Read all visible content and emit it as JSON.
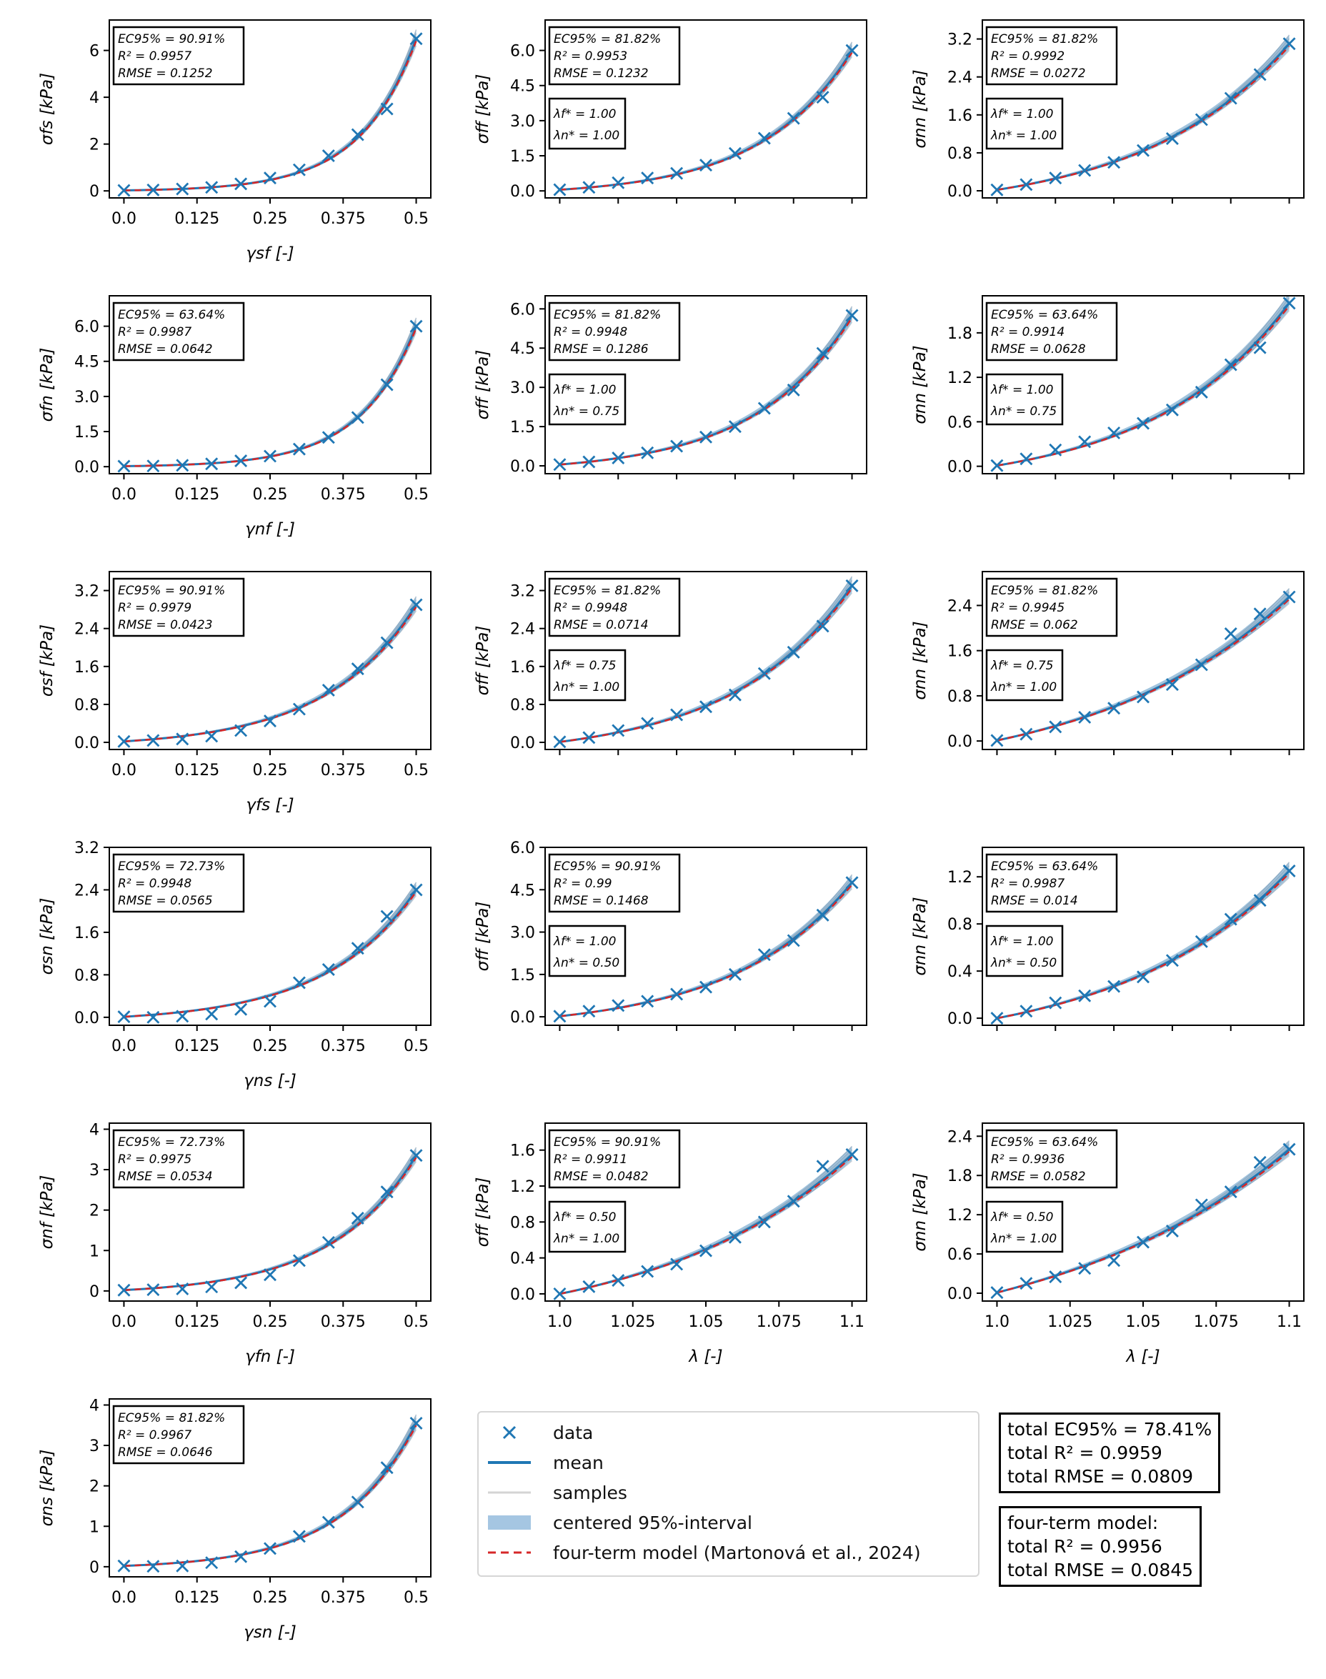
{
  "legend": {
    "data": "data",
    "mean": "mean",
    "samples": "samples",
    "interval": "centered 95%-interval",
    "model": "four-term model (Martonová et al., 2024)"
  },
  "totals": {
    "bayes": [
      "total EC95% = 78.41%",
      "total R² = 0.9959",
      "total RMSE = 0.0809"
    ],
    "model_title": "four-term model:",
    "model": [
      "total R² = 0.9956",
      "total RMSE = 0.0845"
    ]
  },
  "colors": {
    "data": "#1f77b4",
    "mean": "#1f77b4",
    "band": "#6fa4cc",
    "samples": "#cccccc",
    "model": "#d62728"
  },
  "chart_data": [
    {
      "type": "line",
      "row": 0,
      "col": 0,
      "xlabel": "γsf [-]",
      "ylabel": "σfs [kPa]",
      "xticks": [
        "0.0",
        "0.125",
        "0.25",
        "0.375",
        "0.5"
      ],
      "xlim": [
        -0.025,
        0.525
      ],
      "ylim": [
        -0.3,
        7.3
      ],
      "yticks": [
        "0",
        "2",
        "4",
        "6"
      ],
      "ytick_values": [
        0,
        2,
        4,
        6
      ],
      "stats": [
        "EC95% = 90.91%",
        "R² = 0.9957",
        "RMSE = 0.1252"
      ],
      "lambda": [],
      "x": [
        0,
        0.05,
        0.1,
        0.15,
        0.2,
        0.25,
        0.3,
        0.35,
        0.4,
        0.45,
        0.5
      ],
      "y": [
        0.02,
        0.04,
        0.08,
        0.15,
        0.3,
        0.55,
        0.9,
        1.5,
        2.4,
        3.5,
        6.5
      ]
    },
    {
      "type": "line",
      "row": 0,
      "col": 1,
      "xlabel": "",
      "ylabel": "σff [kPa]",
      "xticks": [
        "",
        "",
        "",
        "",
        "",
        ""
      ],
      "xlim": [
        0.995,
        1.105
      ],
      "ylim": [
        -0.3,
        7.3
      ],
      "yticks": [
        "0.0",
        "1.5",
        "3.0",
        "4.5",
        "6.0"
      ],
      "ytick_values": [
        0,
        1.5,
        3,
        4.5,
        6
      ],
      "stats": [
        "EC95% = 81.82%",
        "R² = 0.9953",
        "RMSE = 0.1232"
      ],
      "lambda": [
        "λf* = 1.00",
        "λn* = 1.00"
      ],
      "x": [
        1.0,
        1.01,
        1.02,
        1.03,
        1.04,
        1.05,
        1.06,
        1.07,
        1.08,
        1.09,
        1.1
      ],
      "y": [
        0.05,
        0.15,
        0.35,
        0.55,
        0.75,
        1.1,
        1.6,
        2.25,
        3.1,
        4.0,
        6.0
      ]
    },
    {
      "type": "line",
      "row": 0,
      "col": 2,
      "xlabel": "",
      "ylabel": "σnn [kPa]",
      "xticks": [
        "",
        "",
        "",
        "",
        "",
        ""
      ],
      "xlim": [
        0.995,
        1.105
      ],
      "ylim": [
        -0.15,
        3.6
      ],
      "yticks": [
        "0.0",
        "0.8",
        "1.6",
        "2.4",
        "3.2"
      ],
      "ytick_values": [
        0,
        0.8,
        1.6,
        2.4,
        3.2
      ],
      "stats": [
        "EC95% = 81.82%",
        "R² = 0.9992",
        "RMSE = 0.0272"
      ],
      "lambda": [
        "λf* = 1.00",
        "λn* = 1.00"
      ],
      "x": [
        1.0,
        1.01,
        1.02,
        1.03,
        1.04,
        1.05,
        1.06,
        1.07,
        1.08,
        1.09,
        1.1
      ],
      "y": [
        0.02,
        0.13,
        0.27,
        0.43,
        0.6,
        0.85,
        1.1,
        1.5,
        1.95,
        2.45,
        3.1
      ]
    },
    {
      "type": "line",
      "row": 1,
      "col": 0,
      "xlabel": "γnf [-]",
      "ylabel": "σfn [kPa]",
      "xticks": [
        "0.0",
        "0.125",
        "0.25",
        "0.375",
        "0.5"
      ],
      "xlim": [
        -0.025,
        0.525
      ],
      "ylim": [
        -0.3,
        7.3
      ],
      "yticks": [
        "0.0",
        "1.5",
        "3.0",
        "4.5",
        "6.0"
      ],
      "ytick_values": [
        0,
        1.5,
        3,
        4.5,
        6
      ],
      "stats": [
        "EC95% = 63.64%",
        "R² = 0.9987",
        "RMSE = 0.0642"
      ],
      "lambda": [],
      "x": [
        0,
        0.05,
        0.1,
        0.15,
        0.2,
        0.25,
        0.3,
        0.35,
        0.4,
        0.45,
        0.5
      ],
      "y": [
        0.02,
        0.03,
        0.06,
        0.12,
        0.25,
        0.45,
        0.75,
        1.25,
        2.1,
        3.5,
        6.0
      ]
    },
    {
      "type": "line",
      "row": 1,
      "col": 1,
      "xlabel": "",
      "ylabel": "σff [kPa]",
      "xticks": [
        "",
        "",
        "",
        "",
        "",
        ""
      ],
      "xlim": [
        0.995,
        1.105
      ],
      "ylim": [
        -0.3,
        6.5
      ],
      "yticks": [
        "0.0",
        "1.5",
        "3.0",
        "4.5",
        "6.0"
      ],
      "ytick_values": [
        0,
        1.5,
        3,
        4.5,
        6
      ],
      "stats": [
        "EC95% = 81.82%",
        "R² = 0.9948",
        "RMSE = 0.1286"
      ],
      "lambda": [
        "λf* = 1.00",
        "λn* = 0.75"
      ],
      "x": [
        1.0,
        1.01,
        1.02,
        1.03,
        1.04,
        1.05,
        1.06,
        1.07,
        1.08,
        1.09,
        1.1
      ],
      "y": [
        0.05,
        0.15,
        0.3,
        0.5,
        0.75,
        1.1,
        1.5,
        2.2,
        2.9,
        4.3,
        5.75
      ]
    },
    {
      "type": "line",
      "row": 1,
      "col": 2,
      "xlabel": "",
      "ylabel": "σnn [kPa]",
      "xticks": [
        "",
        "",
        "",
        "",
        "",
        ""
      ],
      "xlim": [
        0.995,
        1.105
      ],
      "ylim": [
        -0.1,
        2.3
      ],
      "yticks": [
        "0.0",
        "0.6",
        "1.2",
        "1.8"
      ],
      "ytick_values": [
        0,
        0.6,
        1.2,
        1.8
      ],
      "stats": [
        "EC95% = 63.64%",
        "R² = 0.9914",
        "RMSE = 0.0628"
      ],
      "lambda": [
        "λf* = 1.00",
        "λn* = 0.75"
      ],
      "x": [
        1.0,
        1.01,
        1.02,
        1.03,
        1.04,
        1.05,
        1.06,
        1.07,
        1.08,
        1.09,
        1.1
      ],
      "y": [
        0.01,
        0.1,
        0.22,
        0.33,
        0.45,
        0.58,
        0.76,
        1.0,
        1.37,
        1.6,
        2.2
      ]
    },
    {
      "type": "line",
      "row": 2,
      "col": 0,
      "xlabel": "γfs [-]",
      "ylabel": "σsf [kPa]",
      "xticks": [
        "0.0",
        "0.125",
        "0.25",
        "0.375",
        "0.5"
      ],
      "xlim": [
        -0.025,
        0.525
      ],
      "ylim": [
        -0.15,
        3.6
      ],
      "yticks": [
        "0.0",
        "0.8",
        "1.6",
        "2.4",
        "3.2"
      ],
      "ytick_values": [
        0,
        0.8,
        1.6,
        2.4,
        3.2
      ],
      "stats": [
        "EC95% = 90.91%",
        "R² = 0.9979",
        "RMSE = 0.0423"
      ],
      "lambda": [],
      "x": [
        0,
        0.05,
        0.1,
        0.15,
        0.2,
        0.25,
        0.3,
        0.35,
        0.4,
        0.45,
        0.5
      ],
      "y": [
        0.02,
        0.04,
        0.07,
        0.13,
        0.25,
        0.45,
        0.7,
        1.1,
        1.55,
        2.1,
        2.9
      ]
    },
    {
      "type": "line",
      "row": 2,
      "col": 1,
      "xlabel": "",
      "ylabel": "σff [kPa]",
      "xticks": [
        "",
        "",
        "",
        "",
        "",
        ""
      ],
      "xlim": [
        0.995,
        1.105
      ],
      "ylim": [
        -0.15,
        3.6
      ],
      "yticks": [
        "0.0",
        "0.8",
        "1.6",
        "2.4",
        "3.2"
      ],
      "ytick_values": [
        0,
        0.8,
        1.6,
        2.4,
        3.2
      ],
      "stats": [
        "EC95% = 81.82%",
        "R² = 0.9948",
        "RMSE = 0.0714"
      ],
      "lambda": [
        "λf* = 0.75",
        "λn* = 1.00"
      ],
      "x": [
        1.0,
        1.01,
        1.02,
        1.03,
        1.04,
        1.05,
        1.06,
        1.07,
        1.08,
        1.09,
        1.1
      ],
      "y": [
        0.01,
        0.1,
        0.25,
        0.4,
        0.58,
        0.75,
        1.0,
        1.45,
        1.9,
        2.45,
        3.3
      ]
    },
    {
      "type": "line",
      "row": 2,
      "col": 2,
      "xlabel": "",
      "ylabel": "σnn [kPa]",
      "xticks": [
        "",
        "",
        "",
        "",
        "",
        ""
      ],
      "xlim": [
        0.995,
        1.105
      ],
      "ylim": [
        -0.15,
        3.0
      ],
      "yticks": [
        "0.0",
        "0.8",
        "1.6",
        "2.4"
      ],
      "ytick_values": [
        0,
        0.8,
        1.6,
        2.4
      ],
      "stats": [
        "EC95% = 81.82%",
        "R² = 0.9945",
        "RMSE = 0.062"
      ],
      "lambda": [
        "λf* = 0.75",
        "λn* = 1.00"
      ],
      "x": [
        1.0,
        1.01,
        1.02,
        1.03,
        1.04,
        1.05,
        1.06,
        1.07,
        1.08,
        1.09,
        1.1
      ],
      "y": [
        0.01,
        0.12,
        0.25,
        0.42,
        0.58,
        0.78,
        1.0,
        1.35,
        1.9,
        2.25,
        2.55
      ]
    },
    {
      "type": "line",
      "row": 3,
      "col": 0,
      "xlabel": "γns [-]",
      "ylabel": "σsn [kPa]",
      "xticks": [
        "0.0",
        "0.125",
        "0.25",
        "0.375",
        "0.5"
      ],
      "xlim": [
        -0.025,
        0.525
      ],
      "ylim": [
        -0.15,
        3.2
      ],
      "yticks": [
        "0.0",
        "0.8",
        "1.6",
        "2.4",
        "3.2"
      ],
      "ytick_values": [
        0,
        0.8,
        1.6,
        2.4,
        3.2
      ],
      "stats": [
        "EC95% = 72.73%",
        "R² = 0.9948",
        "RMSE = 0.0565"
      ],
      "lambda": [],
      "x": [
        0,
        0.05,
        0.1,
        0.15,
        0.2,
        0.25,
        0.3,
        0.35,
        0.4,
        0.45,
        0.5
      ],
      "y": [
        0.01,
        0.0,
        0.02,
        0.06,
        0.15,
        0.3,
        0.65,
        0.9,
        1.3,
        1.9,
        2.4
      ]
    },
    {
      "type": "line",
      "row": 3,
      "col": 1,
      "xlabel": "",
      "ylabel": "σff [kPa]",
      "xticks": [
        "",
        "",
        "",
        "",
        "",
        ""
      ],
      "xlim": [
        0.995,
        1.105
      ],
      "ylim": [
        -0.3,
        6.0
      ],
      "yticks": [
        "0.0",
        "1.5",
        "3.0",
        "4.5",
        "6.0"
      ],
      "ytick_values": [
        0,
        1.5,
        3,
        4.5,
        6
      ],
      "stats": [
        "EC95% = 90.91%",
        "R² = 0.99",
        "RMSE = 0.1468"
      ],
      "lambda": [
        "λf* = 1.00",
        "λn* = 0.50"
      ],
      "x": [
        1.0,
        1.01,
        1.02,
        1.03,
        1.04,
        1.05,
        1.06,
        1.07,
        1.08,
        1.09,
        1.1
      ],
      "y": [
        0.02,
        0.2,
        0.4,
        0.55,
        0.8,
        1.05,
        1.5,
        2.2,
        2.7,
        3.6,
        4.75
      ]
    },
    {
      "type": "line",
      "row": 3,
      "col": 2,
      "xlabel": "",
      "ylabel": "σnn [kPa]",
      "xticks": [
        "",
        "",
        "",
        "",
        "",
        ""
      ],
      "xlim": [
        0.995,
        1.105
      ],
      "ylim": [
        -0.06,
        1.45
      ],
      "yticks": [
        "0.0",
        "0.4",
        "0.8",
        "1.2"
      ],
      "ytick_values": [
        0,
        0.4,
        0.8,
        1.2
      ],
      "stats": [
        "EC95% = 63.64%",
        "R² = 0.9987",
        "RMSE = 0.014"
      ],
      "lambda": [
        "λf* = 1.00",
        "λn* = 0.50"
      ],
      "x": [
        1.0,
        1.01,
        1.02,
        1.03,
        1.04,
        1.05,
        1.06,
        1.07,
        1.08,
        1.09,
        1.1
      ],
      "y": [
        0.0,
        0.06,
        0.13,
        0.19,
        0.27,
        0.35,
        0.49,
        0.65,
        0.84,
        1.0,
        1.25
      ]
    },
    {
      "type": "line",
      "row": 4,
      "col": 0,
      "xlabel": "γfn [-]",
      "ylabel": "σnf [kPa]",
      "xticks": [
        "0.0",
        "0.125",
        "0.25",
        "0.375",
        "0.5"
      ],
      "xlim": [
        -0.025,
        0.525
      ],
      "ylim": [
        -0.25,
        4.15
      ],
      "yticks": [
        "0",
        "1",
        "2",
        "3",
        "4"
      ],
      "ytick_values": [
        0,
        1,
        2,
        3,
        4
      ],
      "stats": [
        "EC95% = 72.73%",
        "R² = 0.9975",
        "RMSE = 0.0534"
      ],
      "lambda": [],
      "x": [
        0,
        0.05,
        0.1,
        0.15,
        0.2,
        0.25,
        0.3,
        0.35,
        0.4,
        0.45,
        0.5
      ],
      "y": [
        0.02,
        0.03,
        0.05,
        0.1,
        0.2,
        0.4,
        0.75,
        1.2,
        1.8,
        2.45,
        3.35
      ]
    },
    {
      "type": "line",
      "row": 4,
      "col": 1,
      "xlabel": "λ [-]",
      "ylabel": "σff [kPa]",
      "xticks": [
        "1.0",
        "1.025",
        "1.05",
        "1.075",
        "1.1"
      ],
      "xlim": [
        0.995,
        1.105
      ],
      "ylim": [
        -0.08,
        1.9
      ],
      "yticks": [
        "0.0",
        "0.4",
        "0.8",
        "1.2",
        "1.6"
      ],
      "ytick_values": [
        0,
        0.4,
        0.8,
        1.2,
        1.6
      ],
      "stats": [
        "EC95% = 90.91%",
        "R² = 0.9911",
        "RMSE = 0.0482"
      ],
      "lambda": [
        "λf* = 0.50",
        "λn* = 1.00"
      ],
      "x": [
        1.0,
        1.01,
        1.02,
        1.03,
        1.04,
        1.05,
        1.06,
        1.07,
        1.08,
        1.09,
        1.1
      ],
      "y": [
        0.0,
        0.08,
        0.15,
        0.25,
        0.33,
        0.48,
        0.63,
        0.8,
        1.03,
        1.42,
        1.55
      ]
    },
    {
      "type": "line",
      "row": 4,
      "col": 2,
      "xlabel": "λ [-]",
      "ylabel": "σnn [kPa]",
      "xticks": [
        "1.0",
        "1.025",
        "1.05",
        "1.075",
        "1.1"
      ],
      "xlim": [
        0.995,
        1.105
      ],
      "ylim": [
        -0.12,
        2.6
      ],
      "yticks": [
        "0.0",
        "0.6",
        "1.2",
        "1.8",
        "2.4"
      ],
      "ytick_values": [
        0,
        0.6,
        1.2,
        1.8,
        2.4
      ],
      "stats": [
        "EC95% = 63.64%",
        "R² = 0.9936",
        "RMSE = 0.0582"
      ],
      "lambda": [
        "λf* = 0.50",
        "λn* = 1.00"
      ],
      "x": [
        1.0,
        1.01,
        1.02,
        1.03,
        1.04,
        1.05,
        1.06,
        1.07,
        1.08,
        1.09,
        1.1
      ],
      "y": [
        0.01,
        0.15,
        0.25,
        0.38,
        0.5,
        0.78,
        0.95,
        1.35,
        1.55,
        2.0,
        2.2
      ]
    },
    {
      "type": "line",
      "row": 5,
      "col": 0,
      "xlabel": "γsn [-]",
      "ylabel": "σns [kPa]",
      "xticks": [
        "0.0",
        "0.125",
        "0.25",
        "0.375",
        "0.5"
      ],
      "xlim": [
        -0.025,
        0.525
      ],
      "ylim": [
        -0.25,
        4.15
      ],
      "yticks": [
        "0",
        "1",
        "2",
        "3",
        "4"
      ],
      "ytick_values": [
        0,
        1,
        2,
        3,
        4
      ],
      "stats": [
        "EC95% = 81.82%",
        "R² = 0.9967",
        "RMSE = 0.0646"
      ],
      "lambda": [],
      "x": [
        0,
        0.05,
        0.1,
        0.15,
        0.2,
        0.25,
        0.3,
        0.35,
        0.4,
        0.45,
        0.5
      ],
      "y": [
        0.02,
        0.01,
        0.02,
        0.1,
        0.25,
        0.45,
        0.75,
        1.1,
        1.6,
        2.45,
        3.55
      ]
    }
  ]
}
